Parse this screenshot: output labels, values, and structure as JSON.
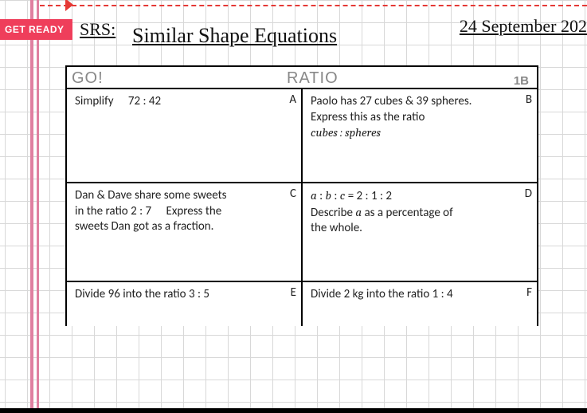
{
  "header": {
    "badge": "GET READY",
    "srs": "SRS:",
    "title": "Similar Shape Equations",
    "date": "24 September 202"
  },
  "panel": {
    "go": "GO!",
    "topic": "RATIO",
    "level": "1B"
  },
  "cells": {
    "a": {
      "letter": "A",
      "text": "Simplify  72 : 42"
    },
    "b": {
      "letter": "B",
      "line1": "Paolo has 27 cubes & 39 spheres.",
      "line2": "Express this as the ratio",
      "line3": "cubes : spheres"
    },
    "c": {
      "letter": "C",
      "line1": "Dan & Dave share some sweets",
      "line2": "in the ratio 2 : 7  Express the",
      "line3": "sweets Dan got as a fraction."
    },
    "d": {
      "letter": "D",
      "expr_a": "a",
      "expr_sep1": " : ",
      "expr_b": "b",
      "expr_sep2": " : ",
      "expr_c": "c",
      "expr_eq": "  =  2 : 1 : 2",
      "line2a": "Describe ",
      "line2var": "a",
      "line2b": " as a percentage of",
      "line3": "the whole."
    },
    "e": {
      "letter": "E",
      "text": "Divide 96 into the ratio 3 : 5"
    },
    "f": {
      "letter": "F",
      "text": "Divide 2 kg into the ratio 1 : 4"
    }
  }
}
